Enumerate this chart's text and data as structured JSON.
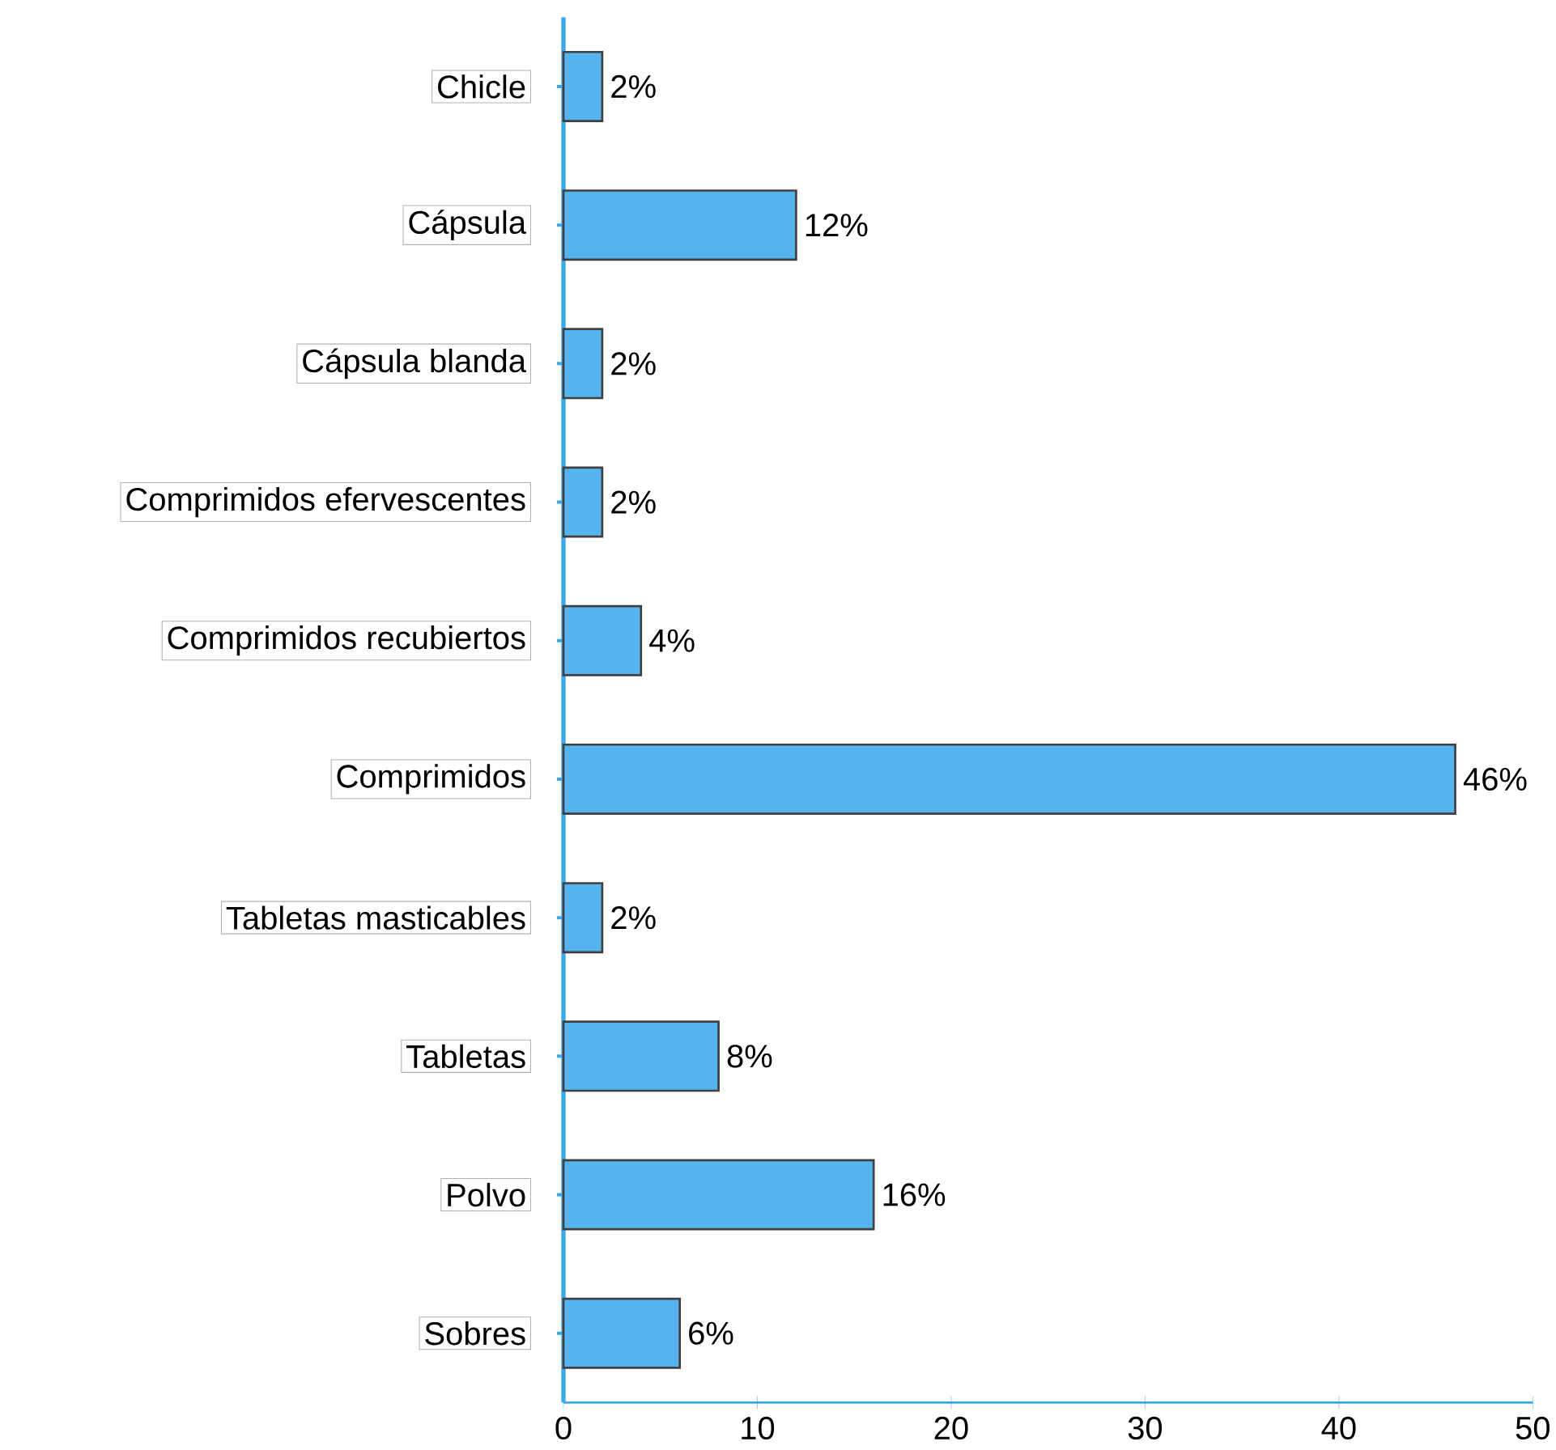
{
  "chart_data": {
    "type": "bar",
    "orientation": "horizontal",
    "categories": [
      "Chicle",
      "Cápsula",
      "Cápsula blanda",
      "Comprimidos efervescentes",
      "Comprimidos recubiertos",
      "Comprimidos",
      "Tabletas masticables",
      "Tabletas",
      "Polvo",
      "Sobres"
    ],
    "values": [
      2,
      12,
      2,
      2,
      4,
      46,
      2,
      8,
      16,
      6
    ],
    "value_labels": [
      "2%",
      "12%",
      "2%",
      "2%",
      "4%",
      "46%",
      "2%",
      "8%",
      "16%",
      "6%"
    ],
    "color": "#55b4ee",
    "xlim": [
      0,
      50
    ],
    "xticks": [
      0,
      10,
      20,
      30,
      40,
      50
    ],
    "grid": false
  }
}
